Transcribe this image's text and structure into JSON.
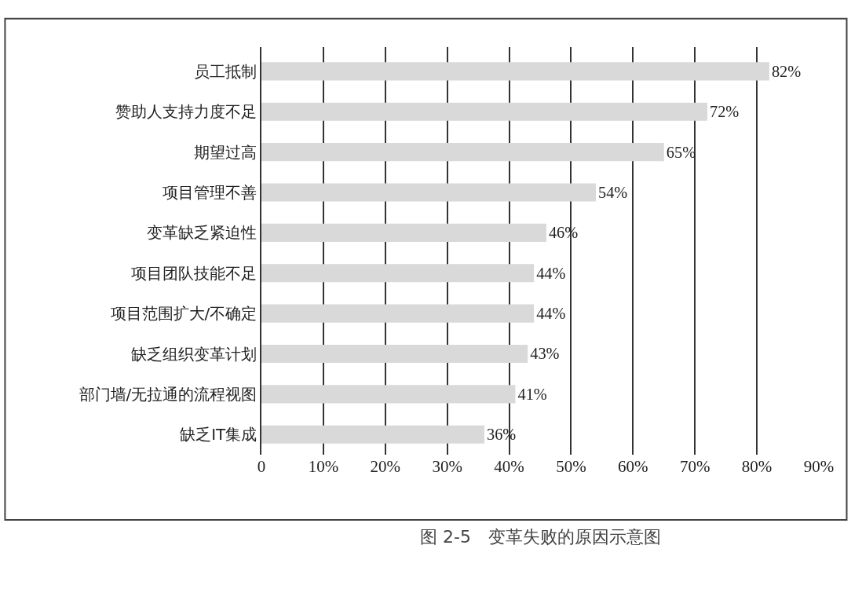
{
  "chart_data": {
    "type": "bar",
    "orientation": "horizontal",
    "categories": [
      "员工抵制",
      "赞助人支持力度不足",
      "期望过高",
      "项目管理不善",
      "变革缺乏紧迫性",
      "项目团队技能不足",
      "项目范围扩大/不确定",
      "缺乏组织变革计划",
      "部门墙/无拉通的流程视图",
      "缺乏IT集成"
    ],
    "values": [
      82,
      72,
      65,
      54,
      46,
      44,
      44,
      43,
      41,
      36
    ],
    "value_labels": [
      "82%",
      "72%",
      "65%",
      "54%",
      "46%",
      "44%",
      "44%",
      "43%",
      "41%",
      "36%"
    ],
    "color": "#d9d9d9",
    "xlim": [
      0,
      90
    ],
    "xticks": [
      0,
      {
        "value": 10,
        "label": "10%"
      },
      {
        "value": 20,
        "label": "20%"
      },
      {
        "value": 30,
        "label": "30%"
      },
      {
        "value": 40,
        "label": "40%"
      },
      {
        "value": 50,
        "label": "50%"
      },
      {
        "value": 60,
        "label": "60%"
      },
      {
        "value": 70,
        "label": "70%"
      },
      {
        "value": 80,
        "label": "80%"
      },
      {
        "value": 90,
        "label": "90%"
      }
    ],
    "grid": "x",
    "legend": false,
    "annotations": [
      "图 2-5　变革失败的原因示意图"
    ]
  }
}
